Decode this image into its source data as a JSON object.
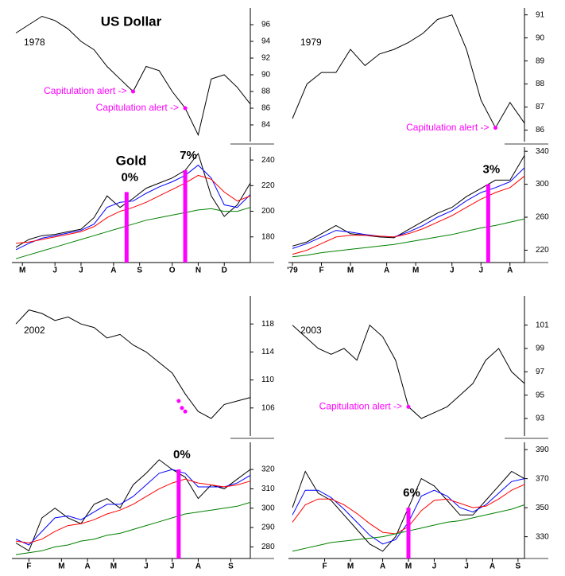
{
  "chart_data": [
    {
      "type": "line",
      "title": "US Dollar",
      "label": "1978",
      "x": [
        0,
        2,
        4,
        6,
        8,
        10,
        12,
        14,
        16,
        18,
        20,
        22,
        24,
        26,
        28,
        30,
        32,
        34,
        36
      ],
      "xlim": [
        0,
        36
      ],
      "series": [
        {
          "color": "#000000",
          "values": [
            95,
            96,
            97,
            96.5,
            95.5,
            94,
            93,
            91,
            89.5,
            88,
            91,
            90.5,
            88,
            86,
            82.8,
            89.5,
            90,
            88.5,
            86.5
          ]
        }
      ],
      "ylim": [
        82,
        98
      ],
      "yticks": [
        84,
        86,
        88,
        90,
        92,
        94,
        96
      ],
      "annotations": [
        {
          "text": "Capitulation alert ->",
          "x": 18,
          "y": 88
        },
        {
          "text": "Capitulation alert ->",
          "x": 26,
          "y": 86
        }
      ]
    },
    {
      "type": "line",
      "title": "Gold",
      "x": [
        0,
        2,
        4,
        6,
        8,
        10,
        12,
        14,
        16,
        18,
        20,
        22,
        24,
        26,
        28,
        30,
        32,
        34,
        36
      ],
      "xlim": [
        0,
        36
      ],
      "series": [
        {
          "color": "#000000",
          "values": [
            172,
            178,
            181,
            182,
            184,
            186,
            195,
            212,
            203,
            210,
            218,
            222,
            226,
            232,
            245,
            212,
            196,
            205,
            222
          ]
        },
        {
          "color": "#0000ff",
          "values": [
            170,
            175,
            179,
            181,
            183,
            185,
            190,
            203,
            207,
            208,
            214,
            219,
            223,
            228,
            236,
            226,
            205,
            203,
            213
          ]
        },
        {
          "color": "#ff0000",
          "values": [
            175,
            176,
            178,
            180,
            182,
            184,
            188,
            195,
            200,
            203,
            207,
            212,
            217,
            222,
            228,
            225,
            215,
            208,
            212
          ]
        },
        {
          "color": "#008000",
          "values": [
            163,
            166,
            169,
            172,
            175,
            178,
            181,
            184,
            187,
            190,
            193,
            195,
            197,
            199,
            201,
            202,
            200,
            200,
            203
          ]
        }
      ],
      "ylim": [
        160,
        250
      ],
      "yticks": [
        180,
        200,
        220,
        240
      ],
      "xticks": [
        {
          "value": 1,
          "label": "M"
        },
        {
          "value": 6,
          "label": "J"
        },
        {
          "value": 10,
          "label": "J"
        },
        {
          "value": 15,
          "label": "A"
        },
        {
          "value": 19,
          "label": "S"
        },
        {
          "value": 24,
          "label": "O"
        },
        {
          "value": 28,
          "label": "N"
        },
        {
          "value": 32,
          "label": "D"
        }
      ],
      "markers": [
        {
          "x": 17,
          "y": 215,
          "label": "0%",
          "color": "#ff00ff"
        },
        {
          "x": 26,
          "y": 232,
          "label": "7%",
          "color": "#ff00ff"
        }
      ]
    },
    {
      "type": "line",
      "label": "1979",
      "x": [
        0,
        2,
        4,
        6,
        8,
        10,
        12,
        14,
        16,
        18,
        20,
        22,
        24,
        26,
        28,
        30,
        32
      ],
      "xlim": [
        0,
        32
      ],
      "series": [
        {
          "color": "#000000",
          "values": [
            86.5,
            88,
            88.5,
            88.5,
            89.5,
            88.8,
            89.3,
            89.5,
            89.8,
            90.2,
            90.8,
            91,
            89.5,
            87.3,
            86.1,
            87.2,
            86.3
          ]
        }
      ],
      "ylim": [
        85.5,
        91.3
      ],
      "yticks": [
        86,
        87,
        88,
        89,
        90,
        91
      ],
      "annotations": [
        {
          "text": "Capitulation alert ->",
          "x": 28,
          "y": 86.1
        }
      ]
    },
    {
      "type": "line",
      "x": [
        0,
        2,
        4,
        6,
        8,
        10,
        12,
        14,
        16,
        18,
        20,
        22,
        24,
        26,
        28,
        30,
        32
      ],
      "xlim": [
        0,
        32
      ],
      "series": [
        {
          "color": "#000000",
          "values": [
            225,
            230,
            240,
            250,
            240,
            238,
            236,
            235,
            245,
            255,
            265,
            272,
            285,
            295,
            305,
            305,
            335
          ]
        },
        {
          "color": "#0000ff",
          "values": [
            222,
            228,
            236,
            244,
            242,
            239,
            237,
            236,
            242,
            250,
            260,
            268,
            280,
            290,
            296,
            303,
            320
          ]
        },
        {
          "color": "#ff0000",
          "values": [
            215,
            220,
            228,
            236,
            238,
            238,
            237,
            236,
            240,
            246,
            254,
            262,
            272,
            282,
            290,
            296,
            310
          ]
        },
        {
          "color": "#008000",
          "values": [
            212,
            214,
            217,
            219,
            221,
            223,
            225,
            227,
            230,
            233,
            236,
            239,
            243,
            247,
            250,
            254,
            258
          ]
        }
      ],
      "ylim": [
        205,
        345
      ],
      "yticks": [
        220,
        260,
        300,
        340
      ],
      "xticks": [
        {
          "value": 0,
          "label": "'79"
        },
        {
          "value": 4,
          "label": "F"
        },
        {
          "value": 8,
          "label": "M"
        },
        {
          "value": 13,
          "label": "A"
        },
        {
          "value": 17,
          "label": "M"
        },
        {
          "value": 22,
          "label": "J"
        },
        {
          "value": 26,
          "label": "J"
        },
        {
          "value": 30,
          "label": "A"
        }
      ],
      "markers": [
        {
          "x": 27,
          "y": 300,
          "label": "3%",
          "color": "#ff00ff"
        }
      ]
    },
    {
      "type": "line",
      "label": "2002",
      "x": [
        0,
        2,
        4,
        6,
        8,
        10,
        12,
        14,
        16,
        18,
        20,
        22,
        24,
        26,
        28,
        30,
        32,
        34,
        36
      ],
      "xlim": [
        0,
        36
      ],
      "series": [
        {
          "color": "#000000",
          "values": [
            118,
            120,
            119.5,
            118.5,
            119,
            118,
            117.5,
            116,
            116.5,
            115,
            114,
            112.5,
            111,
            108,
            105.5,
            104.5,
            106.5,
            107,
            107.5
          ]
        }
      ],
      "ylim": [
        102,
        122
      ],
      "yticks": [
        106,
        110,
        114,
        118
      ],
      "annotations": [
        {
          "x": 25,
          "y": 107
        },
        {
          "x": 25.5,
          "y": 106
        },
        {
          "x": 26,
          "y": 105.5
        }
      ]
    },
    {
      "type": "line",
      "x": [
        0,
        2,
        4,
        6,
        8,
        10,
        12,
        14,
        16,
        18,
        20,
        22,
        24,
        26,
        28,
        30,
        32,
        34,
        36
      ],
      "xlim": [
        0,
        36
      ],
      "series": [
        {
          "color": "#000000",
          "values": [
            282,
            278,
            295,
            300,
            295,
            292,
            302,
            305,
            300,
            312,
            318,
            325,
            320,
            316,
            305,
            312,
            310,
            315,
            320
          ]
        },
        {
          "color": "#0000ff",
          "values": [
            284,
            281,
            288,
            295,
            296,
            294,
            298,
            302,
            302,
            306,
            312,
            318,
            320,
            318,
            311,
            311,
            311,
            313,
            317
          ]
        },
        {
          "color": "#ff0000",
          "values": [
            283,
            282,
            284,
            288,
            291,
            292,
            294,
            297,
            299,
            302,
            306,
            310,
            313,
            315,
            313,
            312,
            311,
            312,
            314
          ]
        },
        {
          "color": "#008000",
          "values": [
            276,
            277,
            278,
            280,
            281,
            283,
            284,
            286,
            287,
            289,
            291,
            293,
            295,
            297,
            298,
            299,
            300,
            301,
            303
          ]
        }
      ],
      "ylim": [
        274,
        334
      ],
      "yticks": [
        280,
        290,
        300,
        310,
        320
      ],
      "xticks": [
        {
          "value": 2,
          "label": "F"
        },
        {
          "value": 7,
          "label": "M"
        },
        {
          "value": 11,
          "label": "A"
        },
        {
          "value": 15,
          "label": "M"
        },
        {
          "value": 20,
          "label": "J"
        },
        {
          "value": 24,
          "label": "J"
        },
        {
          "value": 28,
          "label": "A"
        },
        {
          "value": 33,
          "label": "S"
        }
      ],
      "markers": [
        {
          "x": 25,
          "y": 320,
          "label": "0%",
          "color": "#ff00ff"
        }
      ]
    },
    {
      "type": "line",
      "label": "2003",
      "x": [
        0,
        2,
        4,
        6,
        8,
        10,
        12,
        14,
        16,
        18,
        20,
        22,
        24,
        26,
        28,
        30,
        32,
        34,
        36
      ],
      "xlim": [
        0,
        36
      ],
      "series": [
        {
          "color": "#000000",
          "values": [
            101,
            100,
            99,
            98.5,
            99,
            98,
            101,
            100,
            98,
            94,
            93,
            93.5,
            94,
            95,
            96,
            98,
            99,
            97,
            96
          ]
        }
      ],
      "ylim": [
        91.5,
        103.5
      ],
      "yticks": [
        93,
        95,
        97,
        99,
        101
      ],
      "annotations": [
        {
          "text": "Capitulation alert ->",
          "x": 18,
          "y": 94
        }
      ]
    },
    {
      "type": "line",
      "x": [
        0,
        2,
        4,
        6,
        8,
        10,
        12,
        14,
        16,
        18,
        20,
        22,
        24,
        26,
        28,
        30,
        32,
        34,
        36
      ],
      "xlim": [
        0,
        36
      ],
      "series": [
        {
          "color": "#000000",
          "values": [
            350,
            375,
            360,
            355,
            345,
            335,
            325,
            320,
            330,
            350,
            370,
            365,
            355,
            345,
            345,
            355,
            365,
            375,
            370
          ]
        },
        {
          "color": "#0000ff",
          "values": [
            345,
            362,
            362,
            357,
            349,
            340,
            331,
            325,
            328,
            340,
            358,
            362,
            358,
            350,
            347,
            352,
            360,
            368,
            370
          ]
        },
        {
          "color": "#ff0000",
          "values": [
            340,
            352,
            356,
            356,
            352,
            346,
            339,
            333,
            332,
            337,
            348,
            355,
            356,
            353,
            350,
            351,
            356,
            362,
            366
          ]
        },
        {
          "color": "#008000",
          "values": [
            320,
            322,
            324,
            326,
            327,
            328,
            329,
            330,
            332,
            334,
            336,
            338,
            340,
            341,
            343,
            345,
            347,
            349,
            352
          ]
        }
      ],
      "ylim": [
        315,
        395
      ],
      "yticks": [
        330,
        350,
        370,
        390
      ],
      "xticks": [
        {
          "value": 5,
          "label": "F"
        },
        {
          "value": 9,
          "label": "M"
        },
        {
          "value": 14,
          "label": "A"
        },
        {
          "value": 18,
          "label": "M"
        },
        {
          "value": 22,
          "label": "J"
        },
        {
          "value": 27,
          "label": "J"
        },
        {
          "value": 31,
          "label": "A"
        },
        {
          "value": 35,
          "label": "S"
        }
      ],
      "markers": [
        {
          "x": 18,
          "y": 350,
          "label": "6%",
          "color": "#ff00ff"
        }
      ]
    }
  ]
}
